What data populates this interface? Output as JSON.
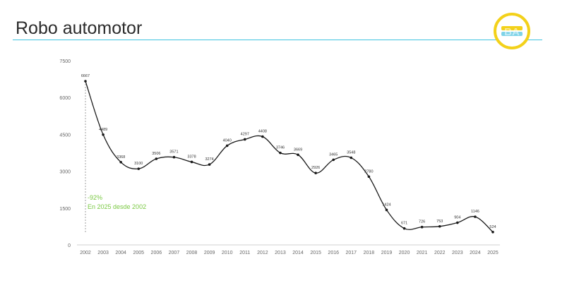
{
  "slide": {
    "title": "Robo automotor",
    "accent_color": "#3ec3df",
    "logo": {
      "text": "BA",
      "ring_color": "#f3d11a",
      "icon": "ba-city-logo"
    }
  },
  "annotation": {
    "line1": "-92%",
    "line2": "En 2025 desde 2002",
    "color": "#7ac943"
  },
  "chart_data": {
    "type": "line",
    "title": "",
    "xlabel": "",
    "ylabel": "",
    "ylim": [
      0,
      7500
    ],
    "yticks": [
      0,
      1500,
      3000,
      4500,
      6000,
      7500
    ],
    "grid": false,
    "legend": "none",
    "line_color": "#1a1a1a",
    "categories": [
      "2002",
      "2003",
      "2004",
      "2005",
      "2006",
      "2007",
      "2008",
      "2009",
      "2010",
      "2011",
      "2012",
      "2013",
      "2014",
      "2015",
      "2016",
      "2017",
      "2018",
      "2019",
      "2020",
      "2021",
      "2022",
      "2023",
      "2024",
      "2025"
    ],
    "values": [
      6667,
      4489,
      3368,
      3100,
      3506,
      3571,
      3378,
      3274,
      4040,
      4297,
      4408,
      3746,
      3669,
      2926,
      3465,
      3548,
      2780,
      1424,
      671,
      726,
      753,
      904,
      1146,
      524
    ]
  }
}
